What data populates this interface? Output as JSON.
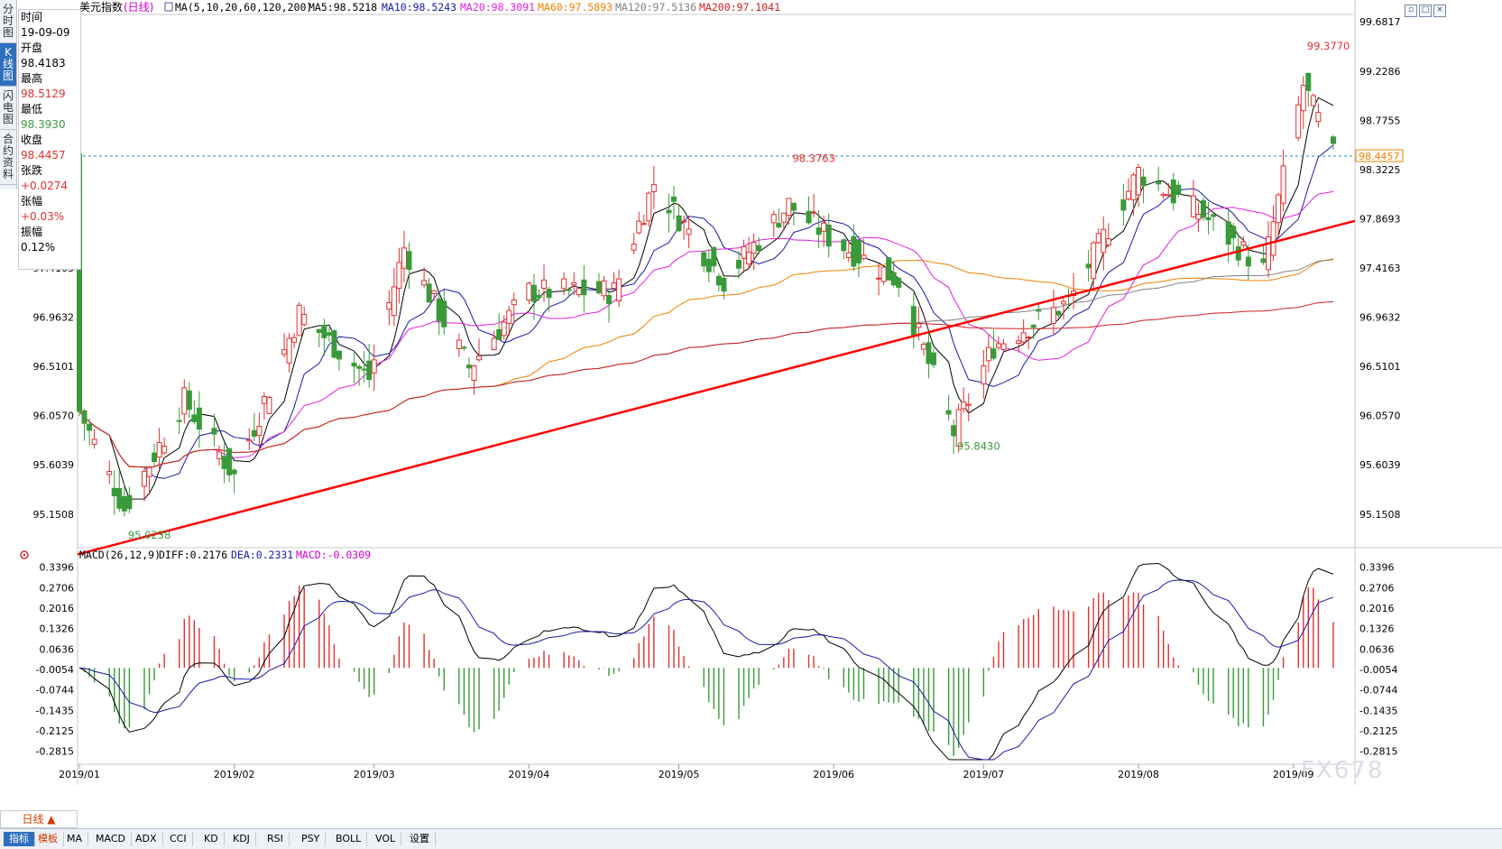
{
  "side_tabs": [
    "分时图",
    "K线图",
    "闪电图",
    "合约资料"
  ],
  "header": {
    "symbol": "美元指数",
    "period": "(日线)",
    "ma_params": "MA(5,10,20,60,120,200)",
    "ma5": "MA5:98.5218",
    "ma10": "MA10:98.5243",
    "ma20": "MA20:98.3091",
    "ma60": "MA60:97.5893",
    "ma120": "MA120:97.5136",
    "ma200": "MA200:97.1041"
  },
  "info": {
    "time_label": "时间",
    "time": "19-09-09",
    "open_label": "开盘",
    "open": "98.4183",
    "high_label": "最高",
    "high": "98.5129",
    "low_label": "最低",
    "low": "98.3930",
    "close_label": "收盘",
    "close": "98.4457",
    "change_label": "张跌",
    "change": "+0.0274",
    "pct_label": "张幅",
    "pct": "+0.03%",
    "amp_label": "振幅",
    "amp": "0.12%"
  },
  "price_axis": [
    "99.6817",
    "99.2286",
    "98.7755",
    "98.3225",
    "97.8693",
    "97.4163",
    "96.9632",
    "96.5101",
    "96.0570",
    "95.6039",
    "95.1508"
  ],
  "current_price": "98.4457",
  "annotations": {
    "high": "99.3770",
    "low_jan": "95.0238",
    "low_jun": "95.8430",
    "may_high": "98.3763"
  },
  "macd": {
    "title": "MACD(26,12,9)",
    "diff": "DIFF:0.2176",
    "dea": "DEA:0.2331",
    "macd": "MACD:-0.0309",
    "axis": [
      "0.3396",
      "0.2706",
      "0.2016",
      "0.1326",
      "0.0636",
      "-0.0054",
      "-0.0744",
      "-0.1435",
      "-0.2125",
      "-0.2815"
    ]
  },
  "months": [
    "2019/01",
    "2019/02",
    "2019/03",
    "2019/04",
    "2019/05",
    "2019/06",
    "2019/07",
    "2019/08",
    "2019/09"
  ],
  "period_button": "日线 ▲",
  "bottom_tabs": [
    "指标",
    "模板",
    "MA",
    "MACD",
    "ADX",
    "CCI",
    "KD",
    "KDJ",
    "RSI",
    "PSY",
    "BOLL",
    "VOL",
    "设置"
  ],
  "watermark": "FX678",
  "colors": {
    "up": "#e03030",
    "down": "#3a9a3a",
    "ma5": "#000000",
    "ma10": "#1a1aa8",
    "ma20": "#e020e0",
    "ma60": "#f08000",
    "ma120": "#808080",
    "ma200": "#d02020",
    "trend": "#ff0000"
  },
  "chart_data": {
    "type": "candlestick",
    "title": "美元指数 (日线)",
    "price_range": [
      94.9,
      99.75
    ],
    "x_range": [
      "2019-01-01",
      "2019-09-09"
    ],
    "trendline": {
      "from": [
        "2019-01-01",
        94.78
      ],
      "to": [
        "2019-09-09",
        97.85
      ]
    },
    "key_points": [
      {
        "label": "95.0238",
        "date": "2019-01-10",
        "value": 95.0238
      },
      {
        "label": "98.3763",
        "date": "2019-05-23",
        "value": 98.3763
      },
      {
        "label": "95.8430",
        "date": "2019-06-25",
        "value": 95.843
      },
      {
        "label": "99.3770",
        "date": "2019-09-03",
        "value": 99.377
      }
    ],
    "close_path": [
      [
        "2019-01-01",
        96.1
      ],
      [
        "2019-01-10",
        95.2
      ],
      [
        "2019-01-22",
        96.2
      ],
      [
        "2019-02-01",
        95.5
      ],
      [
        "2019-02-14",
        97.0
      ],
      [
        "2019-02-28",
        96.4
      ],
      [
        "2019-03-07",
        97.6
      ],
      [
        "2019-03-20",
        96.5
      ],
      [
        "2019-04-01",
        97.2
      ],
      [
        "2019-04-18",
        97.2
      ],
      [
        "2019-04-26",
        98.2
      ],
      [
        "2019-05-10",
        97.3
      ],
      [
        "2019-05-23",
        98.0
      ],
      [
        "2019-05-31",
        97.7
      ],
      [
        "2019-06-14",
        97.3
      ],
      [
        "2019-06-25",
        95.9
      ],
      [
        "2019-07-03",
        96.7
      ],
      [
        "2019-07-18",
        97.1
      ],
      [
        "2019-08-01",
        98.3
      ],
      [
        "2019-08-14",
        97.9
      ],
      [
        "2019-08-26",
        97.4
      ],
      [
        "2019-09-03",
        99.1
      ],
      [
        "2019-09-09",
        98.45
      ]
    ],
    "macd_range": [
      -0.31,
      0.36
    ]
  }
}
